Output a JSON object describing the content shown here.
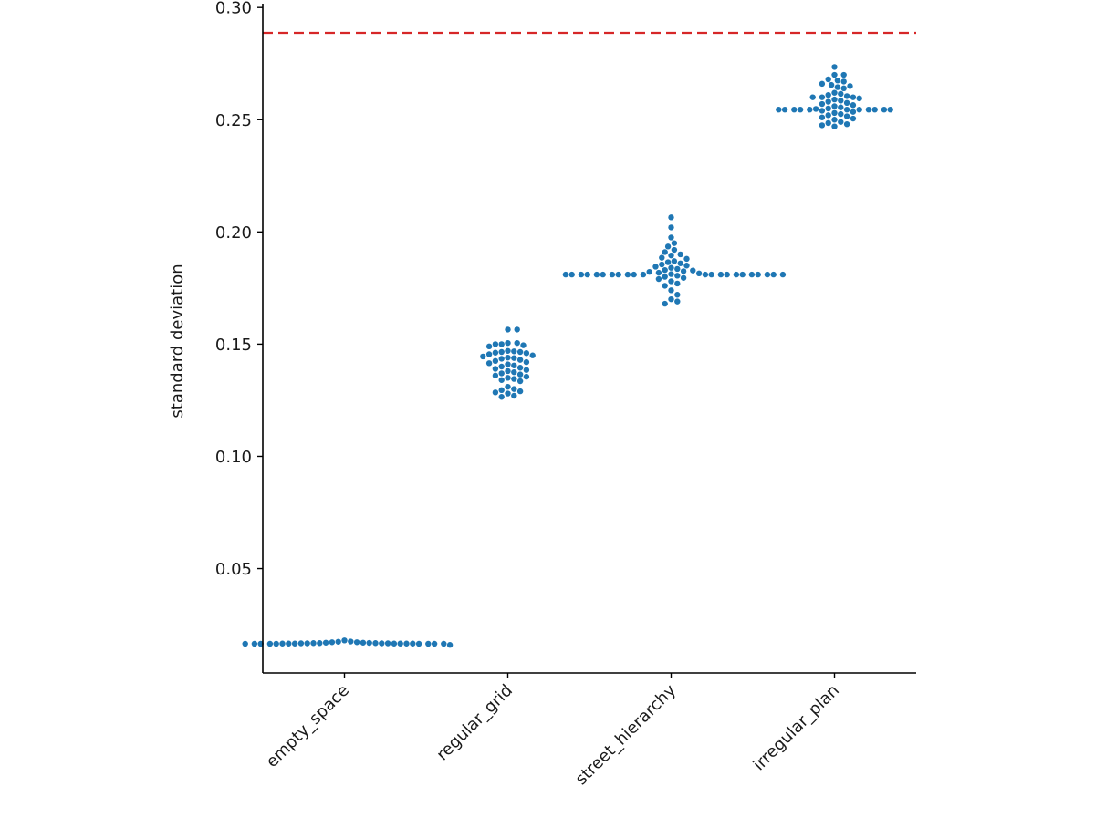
{
  "chart_data": {
    "type": "scatter",
    "subtype": "swarm",
    "title": "",
    "xlabel": "",
    "ylabel": "standard deviation",
    "ylim": [
      0.0035,
      0.3017
    ],
    "yticks": [
      0.05,
      0.1,
      0.15,
      0.2,
      0.25,
      0.3
    ],
    "ytick_labels": [
      "0.05",
      "0.10",
      "0.15",
      "0.20",
      "0.25",
      "0.30"
    ],
    "categories": [
      "empty_space",
      "regular_grid",
      "street_hierarchy",
      "irregular_plan"
    ],
    "point_color": "#1f77b4",
    "reference_line": {
      "value": 0.2887,
      "color": "#d62728",
      "style": "dashed"
    },
    "grid": false,
    "series": [
      {
        "name": "empty_space",
        "values": [
          0.0172,
          0.017,
          0.0168,
          0.0167,
          0.0166,
          0.0166,
          0.0166,
          0.0165,
          0.0165,
          0.0165,
          0.0165,
          0.0165,
          0.0165,
          0.0165,
          0.0165,
          0.0165,
          0.0166,
          0.0166,
          0.0166,
          0.0166,
          0.0167,
          0.0167,
          0.0168,
          0.017,
          0.0172,
          0.018,
          0.016,
          0.0175,
          0.0174,
          0.0169,
          0.0168,
          0.0167
        ]
      },
      {
        "name": "regular_grid",
        "values": [
          0.1565,
          0.1565,
          0.1505,
          0.1505,
          0.15,
          0.15,
          0.1495,
          0.149,
          0.147,
          0.1468,
          0.1465,
          0.1465,
          0.1462,
          0.146,
          0.1455,
          0.145,
          0.1445,
          0.144,
          0.1438,
          0.1435,
          0.143,
          0.1425,
          0.142,
          0.1415,
          0.141,
          0.1405,
          0.14,
          0.1395,
          0.139,
          0.1385,
          0.138,
          0.1375,
          0.137,
          0.1365,
          0.136,
          0.1355,
          0.135,
          0.1345,
          0.134,
          0.1335,
          0.131,
          0.13,
          0.1295,
          0.129,
          0.1285,
          0.128,
          0.127,
          0.1265
        ]
      },
      {
        "name": "street_hierarchy",
        "values": [
          0.2065,
          0.202,
          0.1975,
          0.195,
          0.1935,
          0.192,
          0.191,
          0.19,
          0.1895,
          0.1885,
          0.188,
          0.187,
          0.1865,
          0.186,
          0.1855,
          0.185,
          0.1845,
          0.184,
          0.1835,
          0.183,
          0.1828,
          0.1825,
          0.1822,
          0.1818,
          0.1815,
          0.1812,
          0.181,
          0.181,
          0.181,
          0.181,
          0.181,
          0.181,
          0.181,
          0.181,
          0.181,
          0.181,
          0.181,
          0.181,
          0.181,
          0.181,
          0.181,
          0.181,
          0.181,
          0.181,
          0.181,
          0.181,
          0.181,
          0.181,
          0.1805,
          0.18,
          0.1795,
          0.179,
          0.178,
          0.177,
          0.176,
          0.174,
          0.172,
          0.17,
          0.169,
          0.168
        ]
      },
      {
        "name": "irregular_plan",
        "values": [
          0.2735,
          0.27,
          0.27,
          0.268,
          0.2675,
          0.267,
          0.266,
          0.2655,
          0.265,
          0.2645,
          0.264,
          0.262,
          0.2615,
          0.261,
          0.2605,
          0.26,
          0.26,
          0.26,
          0.2595,
          0.259,
          0.2585,
          0.258,
          0.2575,
          0.257,
          0.2565,
          0.256,
          0.2555,
          0.255,
          0.2548,
          0.2545,
          0.2545,
          0.2545,
          0.2545,
          0.2545,
          0.2545,
          0.2545,
          0.2545,
          0.2545,
          0.2545,
          0.2545,
          0.254,
          0.2535,
          0.253,
          0.2525,
          0.252,
          0.2515,
          0.251,
          0.2505,
          0.25,
          0.249,
          0.2485,
          0.248,
          0.2475,
          0.247
        ]
      }
    ]
  }
}
